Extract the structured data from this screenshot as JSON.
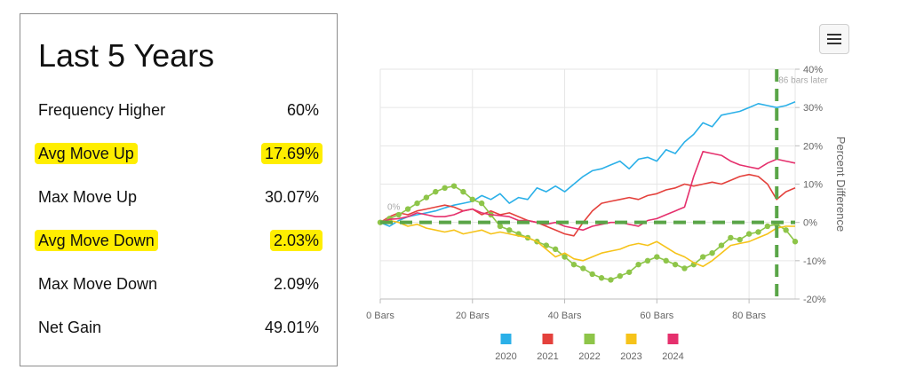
{
  "stats": {
    "title": "Last 5 Years",
    "rows": [
      {
        "label": "Frequency Higher",
        "value": "60%",
        "highlight": false
      },
      {
        "label": "Avg Move Up",
        "value": "17.69%",
        "highlight": true
      },
      {
        "label": "Max Move Up",
        "value": "30.07%",
        "highlight": false
      },
      {
        "label": "Avg Move Down",
        "value": "2.03%",
        "highlight": true
      },
      {
        "label": "Max Move Down",
        "value": "2.09%",
        "highlight": false
      },
      {
        "label": "Net Gain",
        "value": "49.01%",
        "highlight": false
      }
    ],
    "highlight_color": "#ffee00"
  },
  "menu": {
    "icon": "hamburger-menu-icon"
  },
  "chart_data": {
    "type": "line",
    "xlabel": "",
    "ylabel": "Percent Difference",
    "xlim": [
      0,
      90
    ],
    "ylim": [
      -20,
      40
    ],
    "x_ticks": [
      0,
      20,
      40,
      60,
      80
    ],
    "x_tick_labels": [
      "0 Bars",
      "20 Bars",
      "40 Bars",
      "60 Bars",
      "80 Bars"
    ],
    "y_ticks": [
      -20,
      -10,
      0,
      10,
      20,
      30,
      40
    ],
    "y_tick_labels": [
      "-20%",
      "-10%",
      "0%",
      "10%",
      "20%",
      "30%",
      "40%"
    ],
    "y_axis_position": "right",
    "grid": true,
    "legend_position": "bottom",
    "annotations": [
      {
        "text": "0%",
        "x": 0,
        "y": 0
      },
      {
        "text": "86 bars later",
        "x": 86,
        "y": 36
      }
    ],
    "reference_lines": [
      {
        "axis": "y",
        "value": 0,
        "style": "dashed",
        "color": "#5aa548"
      },
      {
        "axis": "x",
        "value": 86,
        "style": "dashed",
        "color": "#5aa548"
      }
    ],
    "series": [
      {
        "name": "2020",
        "color": "#2bb0e8",
        "markers": false,
        "points": [
          [
            0,
            0
          ],
          [
            2,
            -1
          ],
          [
            4,
            0.5
          ],
          [
            6,
            1.5
          ],
          [
            8,
            2
          ],
          [
            10,
            2.5
          ],
          [
            12,
            3
          ],
          [
            14,
            3.8
          ],
          [
            16,
            4.5
          ],
          [
            18,
            5
          ],
          [
            20,
            5.5
          ],
          [
            22,
            7
          ],
          [
            24,
            6
          ],
          [
            26,
            7.5
          ],
          [
            28,
            5
          ],
          [
            30,
            6.5
          ],
          [
            32,
            6
          ],
          [
            34,
            9
          ],
          [
            36,
            8
          ],
          [
            38,
            9.5
          ],
          [
            40,
            8
          ],
          [
            42,
            10
          ],
          [
            44,
            12
          ],
          [
            46,
            13.5
          ],
          [
            48,
            14
          ],
          [
            50,
            15
          ],
          [
            52,
            16
          ],
          [
            54,
            14
          ],
          [
            56,
            16.5
          ],
          [
            58,
            17
          ],
          [
            60,
            16
          ],
          [
            62,
            19
          ],
          [
            64,
            18
          ],
          [
            66,
            21
          ],
          [
            68,
            23
          ],
          [
            70,
            26
          ],
          [
            72,
            25
          ],
          [
            74,
            28
          ],
          [
            76,
            28.5
          ],
          [
            78,
            29
          ],
          [
            80,
            30
          ],
          [
            82,
            31
          ],
          [
            84,
            30.5
          ],
          [
            86,
            30
          ],
          [
            88,
            30.5
          ],
          [
            90,
            31.5
          ]
        ]
      },
      {
        "name": "2021",
        "color": "#e4413c",
        "markers": false,
        "points": [
          [
            0,
            0
          ],
          [
            2,
            1.5
          ],
          [
            4,
            2.5
          ],
          [
            6,
            2
          ],
          [
            8,
            3
          ],
          [
            10,
            3.5
          ],
          [
            12,
            4
          ],
          [
            14,
            4.5
          ],
          [
            16,
            4
          ],
          [
            18,
            3
          ],
          [
            20,
            3.5
          ],
          [
            22,
            2
          ],
          [
            24,
            3
          ],
          [
            26,
            2
          ],
          [
            28,
            2.5
          ],
          [
            30,
            1.5
          ],
          [
            32,
            0.5
          ],
          [
            34,
            0
          ],
          [
            36,
            -1
          ],
          [
            38,
            -2
          ],
          [
            40,
            -3
          ],
          [
            42,
            -3.5
          ],
          [
            44,
            0
          ],
          [
            46,
            3
          ],
          [
            48,
            5
          ],
          [
            50,
            5.5
          ],
          [
            52,
            6
          ],
          [
            54,
            6.5
          ],
          [
            56,
            6
          ],
          [
            58,
            7
          ],
          [
            60,
            7.5
          ],
          [
            62,
            8.5
          ],
          [
            64,
            9
          ],
          [
            66,
            10
          ],
          [
            68,
            9.5
          ],
          [
            70,
            10
          ],
          [
            72,
            10.5
          ],
          [
            74,
            10
          ],
          [
            76,
            11
          ],
          [
            78,
            12
          ],
          [
            80,
            12.5
          ],
          [
            82,
            12
          ],
          [
            84,
            10
          ],
          [
            86,
            6
          ],
          [
            88,
            8
          ],
          [
            90,
            9
          ]
        ]
      },
      {
        "name": "2022",
        "color": "#8ec549",
        "markers": true,
        "points": [
          [
            0,
            0
          ],
          [
            2,
            1
          ],
          [
            4,
            2
          ],
          [
            6,
            3.5
          ],
          [
            8,
            5
          ],
          [
            10,
            6.5
          ],
          [
            12,
            8
          ],
          [
            14,
            9
          ],
          [
            16,
            9.5
          ],
          [
            18,
            8
          ],
          [
            20,
            6
          ],
          [
            22,
            5
          ],
          [
            24,
            2
          ],
          [
            26,
            -1
          ],
          [
            28,
            -2
          ],
          [
            30,
            -3
          ],
          [
            32,
            -4
          ],
          [
            34,
            -5
          ],
          [
            36,
            -6
          ],
          [
            38,
            -7
          ],
          [
            40,
            -9
          ],
          [
            42,
            -11
          ],
          [
            44,
            -12
          ],
          [
            46,
            -13.5
          ],
          [
            48,
            -14.5
          ],
          [
            50,
            -15
          ],
          [
            52,
            -14
          ],
          [
            54,
            -13
          ],
          [
            56,
            -11
          ],
          [
            58,
            -10
          ],
          [
            60,
            -9
          ],
          [
            62,
            -10
          ],
          [
            64,
            -11
          ],
          [
            66,
            -12
          ],
          [
            68,
            -11
          ],
          [
            70,
            -9
          ],
          [
            72,
            -8
          ],
          [
            74,
            -6
          ],
          [
            76,
            -4
          ],
          [
            78,
            -4.5
          ],
          [
            80,
            -3
          ],
          [
            82,
            -2.5
          ],
          [
            84,
            -1
          ],
          [
            86,
            -0.5
          ],
          [
            88,
            -2
          ],
          [
            90,
            -5
          ]
        ]
      },
      {
        "name": "2023",
        "color": "#f6c31a",
        "markers": false,
        "points": [
          [
            0,
            0
          ],
          [
            2,
            0.5
          ],
          [
            4,
            0
          ],
          [
            6,
            -1
          ],
          [
            8,
            -0.5
          ],
          [
            10,
            -1.5
          ],
          [
            12,
            -2
          ],
          [
            14,
            -2.5
          ],
          [
            16,
            -2
          ],
          [
            18,
            -3
          ],
          [
            20,
            -2.5
          ],
          [
            22,
            -2
          ],
          [
            24,
            -3
          ],
          [
            26,
            -2.5
          ],
          [
            28,
            -3
          ],
          [
            30,
            -3.5
          ],
          [
            32,
            -4
          ],
          [
            34,
            -5
          ],
          [
            36,
            -7
          ],
          [
            38,
            -9
          ],
          [
            40,
            -8
          ],
          [
            42,
            -9.5
          ],
          [
            44,
            -10
          ],
          [
            46,
            -9
          ],
          [
            48,
            -8
          ],
          [
            50,
            -7.5
          ],
          [
            52,
            -7
          ],
          [
            54,
            -6
          ],
          [
            56,
            -5.5
          ],
          [
            58,
            -6
          ],
          [
            60,
            -5
          ],
          [
            62,
            -6.5
          ],
          [
            64,
            -8
          ],
          [
            66,
            -9
          ],
          [
            68,
            -10.5
          ],
          [
            70,
            -11.5
          ],
          [
            72,
            -10
          ],
          [
            74,
            -8
          ],
          [
            76,
            -6
          ],
          [
            78,
            -5.5
          ],
          [
            80,
            -5
          ],
          [
            82,
            -4
          ],
          [
            84,
            -3
          ],
          [
            86,
            -1.5
          ],
          [
            88,
            -1
          ],
          [
            90,
            -1
          ]
        ]
      },
      {
        "name": "2024",
        "color": "#e5306d",
        "markers": false,
        "points": [
          [
            0,
            0
          ],
          [
            2,
            0.8
          ],
          [
            4,
            1
          ],
          [
            6,
            1.5
          ],
          [
            8,
            2.5
          ],
          [
            10,
            2
          ],
          [
            12,
            1.5
          ],
          [
            14,
            1.5
          ],
          [
            16,
            2
          ],
          [
            18,
            3
          ],
          [
            20,
            3.5
          ],
          [
            22,
            2.5
          ],
          [
            24,
            2
          ],
          [
            26,
            1.8
          ],
          [
            28,
            1.5
          ],
          [
            30,
            0.5
          ],
          [
            32,
            0.5
          ],
          [
            34,
            0
          ],
          [
            36,
            -0.5
          ],
          [
            38,
            0
          ],
          [
            40,
            -1
          ],
          [
            42,
            -1.5
          ],
          [
            44,
            -2
          ],
          [
            46,
            -1
          ],
          [
            48,
            -0.5
          ],
          [
            50,
            0
          ],
          [
            52,
            0
          ],
          [
            54,
            -0.5
          ],
          [
            56,
            -1
          ],
          [
            58,
            0.5
          ],
          [
            60,
            1
          ],
          [
            62,
            2
          ],
          [
            64,
            3
          ],
          [
            66,
            4
          ],
          [
            68,
            12
          ],
          [
            70,
            18.5
          ],
          [
            72,
            18
          ],
          [
            74,
            17.5
          ],
          [
            76,
            16
          ],
          [
            78,
            15
          ],
          [
            80,
            14.5
          ],
          [
            82,
            14
          ],
          [
            84,
            15.5
          ],
          [
            86,
            16.5
          ],
          [
            88,
            16
          ],
          [
            90,
            15.5
          ]
        ]
      }
    ]
  }
}
